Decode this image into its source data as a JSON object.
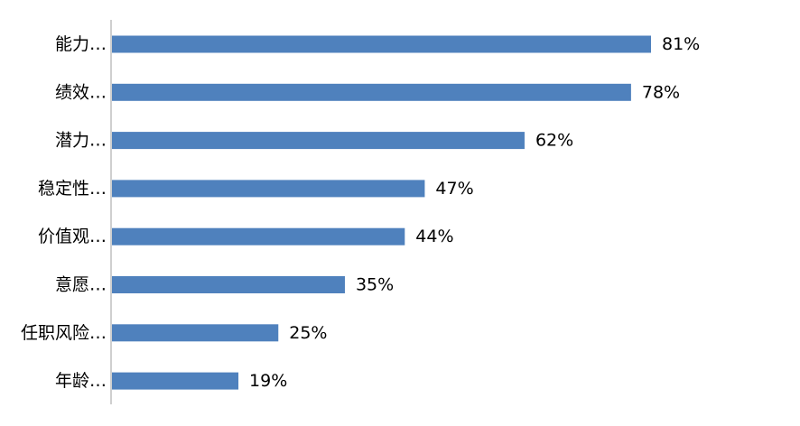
{
  "chart_data": {
    "type": "bar",
    "orientation": "horizontal",
    "categories": [
      "能力…",
      "绩效…",
      "潜力…",
      "稳定性…",
      "价值观…",
      "意愿…",
      "任职风险…",
      "年龄…"
    ],
    "values": [
      81,
      78,
      62,
      47,
      44,
      35,
      25,
      19
    ],
    "value_labels": [
      "81%",
      "78%",
      "62%",
      "47%",
      "44%",
      "35%",
      "25%",
      "19%"
    ],
    "unit": "%",
    "title": "",
    "xlabel": "",
    "ylabel": "",
    "grid": false,
    "legend": "none",
    "bar_color": "#4f81bd",
    "axis_color": "#bfbfbf"
  }
}
